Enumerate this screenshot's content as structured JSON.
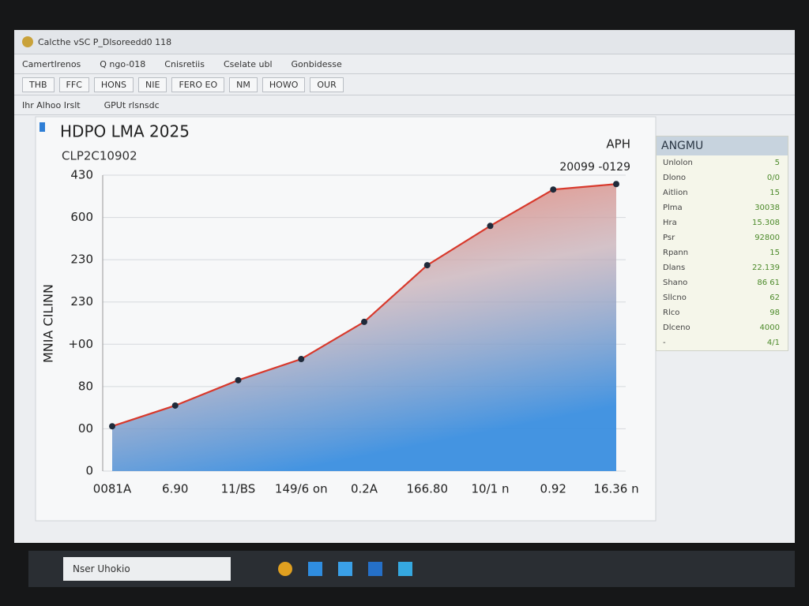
{
  "window": {
    "title": "Calcthe vSC P_Dlsoreedd0 118",
    "menu": [
      "Camertlrenos",
      "Q ngo-018",
      "Cnisretiis",
      "Cselate ubl",
      "Gonbidesse"
    ],
    "toolbar": [
      "THB",
      "FFC",
      "HONS",
      "NIE",
      "FERO EO",
      "NM",
      "HOWO",
      "OUR"
    ],
    "subbar": [
      "Ihr Alhoo Irslt",
      "GPUt rlsnsdc"
    ]
  },
  "chart_data": {
    "type": "line",
    "title": "HDPO LMA 2025",
    "subtitle": "CLP2C10902",
    "corner_label": "APH",
    "annotation": "20099 -0129",
    "y_label": "MNIA CILINN",
    "categories": [
      "0081A",
      "6.90",
      "11/BS",
      "149/6 on",
      "0.2A",
      "166.80",
      "10/1 n",
      "0.92",
      "16.36 n"
    ],
    "series": [
      {
        "color": "#d8392c",
        "values": [
          106,
          155,
          215,
          265,
          353,
          487,
          580,
          666,
          679
        ]
      }
    ],
    "ylim": [
      0,
      700
    ],
    "yticks": [
      0,
      {
        "value": 100,
        "label": "00"
      },
      {
        "value": 200,
        "label": "80"
      },
      {
        "value": 300,
        "label": "+00"
      },
      {
        "value": 400,
        "label": "230"
      },
      {
        "value": 500,
        "label": "230"
      },
      600,
      {
        "value": 700,
        "label": "430"
      }
    ],
    "grid": true
  },
  "panel": {
    "title": "ANGMU",
    "rows": [
      [
        "Unlolon",
        "5"
      ],
      [
        "Dlono",
        "0/0"
      ],
      [
        "Aitlion",
        "15"
      ],
      [
        "Plma",
        "30038"
      ],
      [
        "Hra",
        "15.308"
      ],
      [
        "Psr",
        "92800"
      ],
      [
        "Rpann",
        "15"
      ],
      [
        "Dlans",
        "22.139"
      ],
      [
        "Shano",
        "86 61"
      ],
      [
        "Sllcno",
        "62"
      ],
      [
        "Rlco",
        "98"
      ],
      [
        "Dlceno",
        "4000"
      ],
      [
        "-",
        "4/1"
      ]
    ]
  },
  "taskbar": {
    "search": "Nser Uhokio"
  }
}
